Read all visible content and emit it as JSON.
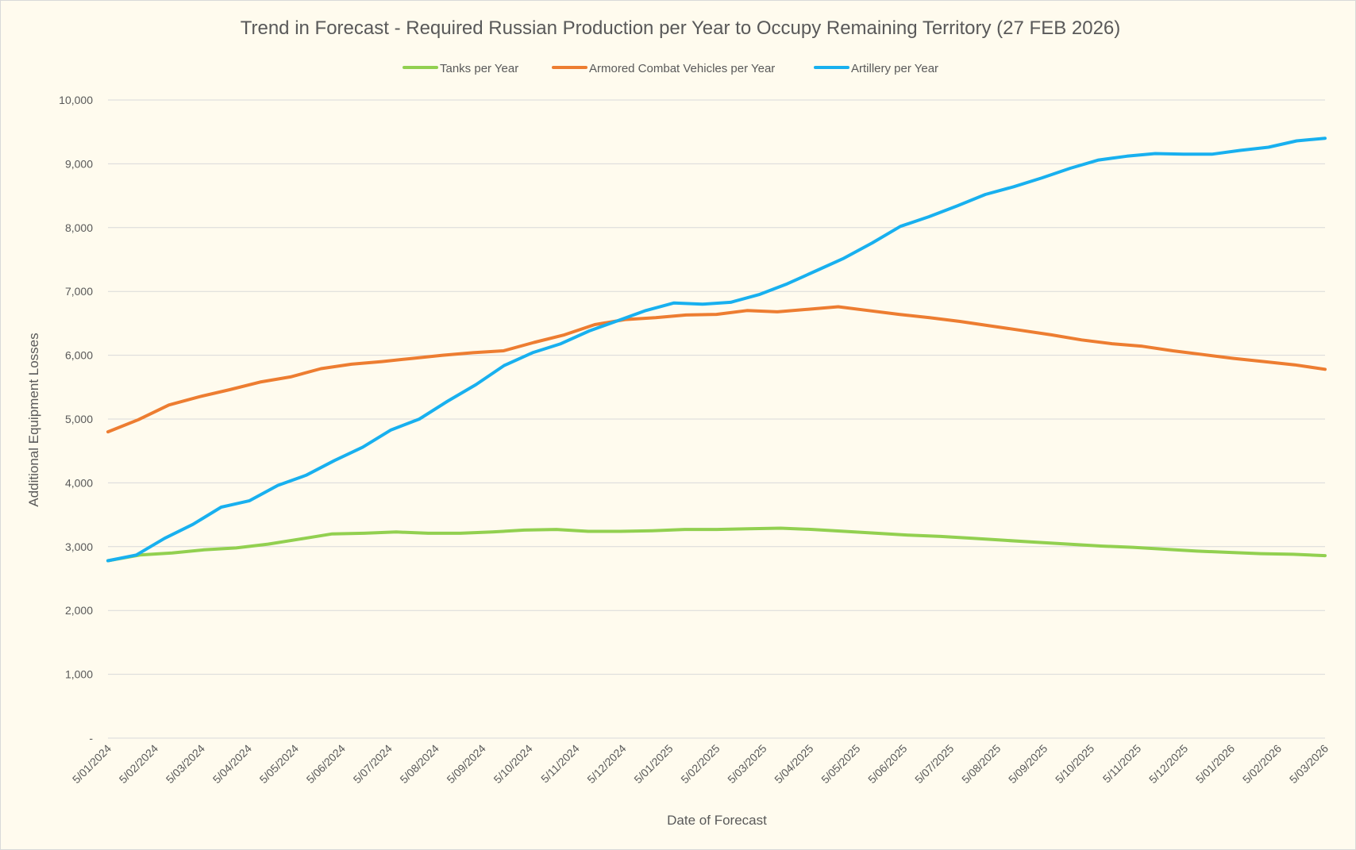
{
  "chart_data": {
    "type": "line",
    "title": "Trend in Forecast - Required Russian Production per Year to Occupy Remaining Territory (27 FEB 2026)",
    "xlabel": "Date of Forecast",
    "ylabel": "Additional Equipment Losses",
    "ylim": [
      0,
      10000
    ],
    "y_ticks": [
      "-",
      "1,000",
      "2,000",
      "3,000",
      "4,000",
      "5,000",
      "6,000",
      "7,000",
      "8,000",
      "9,000",
      "10,000"
    ],
    "x_tick_labels": [
      "5/01/2024",
      "5/02/2024",
      "5/03/2024",
      "5/04/2024",
      "5/05/2024",
      "5/06/2024",
      "5/07/2024",
      "5/08/2024",
      "5/09/2024",
      "5/10/2024",
      "5/11/2024",
      "5/12/2024",
      "5/01/2025",
      "5/02/2025",
      "5/03/2025",
      "5/04/2025",
      "5/05/2025",
      "5/06/2025",
      "5/07/2025",
      "5/08/2025",
      "5/09/2025",
      "5/10/2025",
      "5/11/2025",
      "5/12/2025",
      "5/01/2026",
      "5/02/2026",
      "5/03/2026"
    ],
    "legend_position": "top",
    "grid": true,
    "series": [
      {
        "name": "Tanks per Year",
        "color": "#92d050",
        "values": [
          2780,
          2870,
          2900,
          2950,
          2980,
          3040,
          3120,
          3200,
          3210,
          3230,
          3210,
          3210,
          3230,
          3260,
          3270,
          3240,
          3240,
          3250,
          3270,
          3270,
          3280,
          3290,
          3270,
          3240,
          3210,
          3180,
          3160,
          3130,
          3100,
          3070,
          3040,
          3010,
          2990,
          2960,
          2930,
          2910,
          2890,
          2880,
          2860
        ]
      },
      {
        "name": "Armored Combat Vehicles per Year",
        "color": "#ed7d31",
        "values": [
          4800,
          4990,
          5220,
          5350,
          5460,
          5580,
          5660,
          5790,
          5860,
          5900,
          5950,
          6000,
          6040,
          6070,
          6200,
          6320,
          6480,
          6560,
          6590,
          6630,
          6640,
          6700,
          6680,
          6720,
          6760,
          6700,
          6640,
          6590,
          6530,
          6460,
          6390,
          6320,
          6240,
          6180,
          6140,
          6070,
          6010,
          5950,
          5900,
          5850,
          5780
        ]
      },
      {
        "name": "Artillery per Year",
        "color": "#18b0ef",
        "values": [
          2780,
          2870,
          3130,
          3350,
          3620,
          3720,
          3960,
          4120,
          4350,
          4560,
          4830,
          5000,
          5280,
          5540,
          5840,
          6040,
          6180,
          6380,
          6540,
          6700,
          6820,
          6800,
          6830,
          6950,
          7120,
          7320,
          7520,
          7760,
          8020,
          8170,
          8340,
          8520,
          8640,
          8780,
          8930,
          9060,
          9120,
          9160,
          9150,
          9150,
          9210,
          9260,
          9360,
          9400
        ]
      }
    ]
  }
}
